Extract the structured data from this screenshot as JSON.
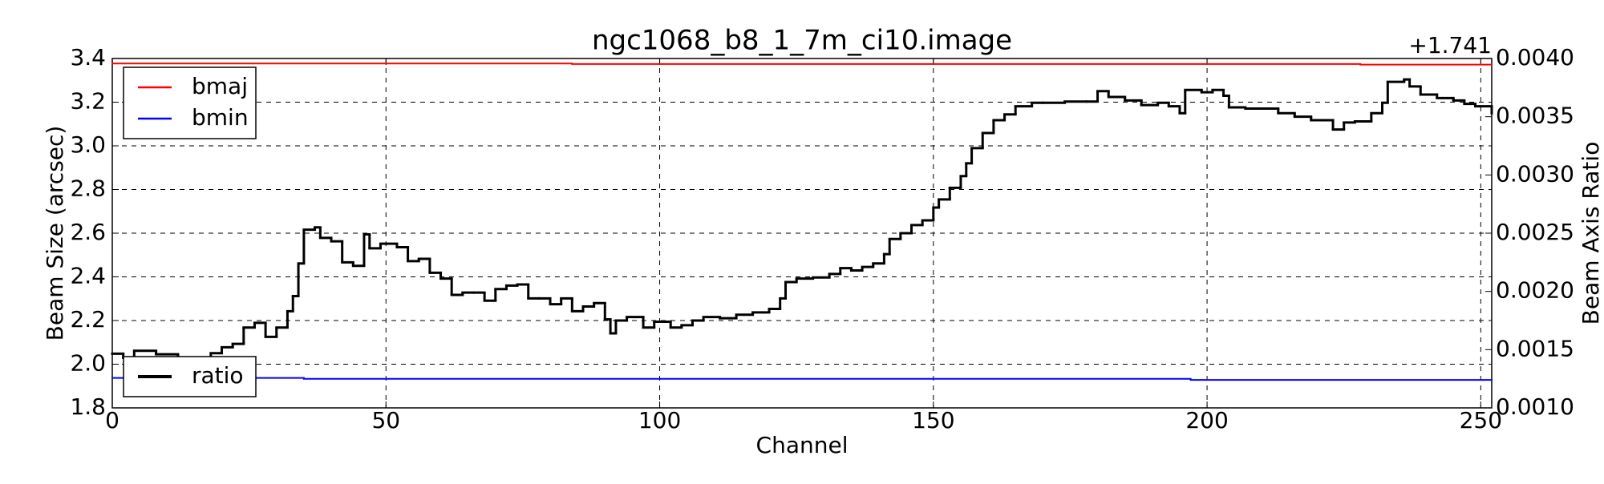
{
  "chart_data": {
    "type": "step",
    "title": "ngc1068_b8_1_7m_ci10.image",
    "xlabel": "Channel",
    "ylabel": "Beam Size (arcsec)",
    "y2label": "Beam Axis Ratio",
    "y2offset": "+1.741",
    "xlim": [
      0,
      252
    ],
    "xticks": [
      0,
      50,
      100,
      150,
      200,
      250
    ],
    "ylim": [
      1.8,
      3.4
    ],
    "yticks": [
      1.8,
      {
        "value": 2,
        "label": "2.0"
      },
      2.2,
      2.4,
      2.6,
      2.8,
      {
        "value": 3,
        "label": "3.0"
      },
      3.2,
      3.4
    ],
    "y2lim": [
      0.001,
      0.004
    ],
    "y2ticks": [
      {
        "value": 0.001,
        "label": "0.0010"
      },
      {
        "value": 0.0015,
        "label": "0.0015"
      },
      {
        "value": 0.002,
        "label": "0.0020"
      },
      {
        "value": 0.0025,
        "label": "0.0025"
      },
      {
        "value": 0.003,
        "label": "0.0030"
      },
      {
        "value": 0.0035,
        "label": "0.0035"
      },
      {
        "value": 0.004,
        "label": "0.0040"
      }
    ],
    "grid": true,
    "legend": "upper left",
    "legend2": "lower left",
    "series": [
      {
        "name": "bmaj",
        "color": "#ff0000",
        "x": [
          0,
          84,
          228
        ],
        "values": [
          3.377,
          3.375,
          3.372
        ]
      },
      {
        "name": "bmin",
        "color": "#0000ff",
        "x": [
          0,
          35,
          197
        ],
        "values": [
          1.937,
          1.933,
          1.928
        ]
      },
      {
        "name": "ratio",
        "color": "#000000",
        "axis": "y2",
        "x": [
          0,
          2,
          4,
          8,
          12,
          14,
          16,
          18,
          20,
          22,
          24,
          26,
          28,
          30,
          32,
          33,
          34,
          35,
          37,
          38,
          40,
          42,
          44,
          46,
          47,
          49,
          52,
          54,
          56,
          58,
          60,
          62,
          64,
          66,
          68,
          70,
          72,
          74,
          76,
          78,
          80,
          82,
          84,
          86,
          88,
          90,
          91,
          92,
          94,
          97,
          99,
          102,
          104,
          106,
          108,
          111,
          114,
          117,
          120,
          122,
          123,
          125,
          128,
          131,
          133,
          135,
          137,
          139,
          141,
          142,
          144,
          146,
          148,
          150,
          151,
          153,
          155,
          156,
          157,
          159,
          161,
          163,
          165,
          168,
          170,
          174,
          178,
          180,
          182,
          185,
          188,
          191,
          193,
          195,
          196,
          199,
          201,
          203,
          204,
          207,
          210,
          213,
          216,
          219,
          222,
          223,
          225,
          227,
          230,
          232,
          233,
          236,
          237,
          239,
          242,
          245,
          247,
          249,
          252
        ],
        "values": [
          0.001465,
          0.00143,
          0.00149,
          0.00146,
          0.00141,
          0.00136,
          0.00141,
          0.00147,
          0.00152,
          0.00155,
          0.00169,
          0.00173,
          0.00161,
          0.00169,
          0.00183,
          0.00196,
          0.00224,
          0.00253,
          0.00255,
          0.00246,
          0.00243,
          0.00225,
          0.00222,
          0.00249,
          0.00237,
          0.00241,
          0.00238,
          0.00226,
          0.00228,
          0.00216,
          0.00211,
          0.00197,
          0.00199,
          0.00199,
          0.00192,
          0.00202,
          0.00205,
          0.00206,
          0.00194,
          0.00194,
          0.00189,
          0.00194,
          0.00183,
          0.00187,
          0.0019,
          0.00176,
          0.00164,
          0.00175,
          0.00178,
          0.00169,
          0.00174,
          0.00169,
          0.00171,
          0.00175,
          0.00178,
          0.00177,
          0.0018,
          0.00182,
          0.00185,
          0.00194,
          0.00208,
          0.00211,
          0.00212,
          0.00215,
          0.0022,
          0.00218,
          0.00221,
          0.00224,
          0.00232,
          0.00245,
          0.0025,
          0.00257,
          0.00261,
          0.00272,
          0.00279,
          0.00289,
          0.00299,
          0.0031,
          0.00323,
          0.00336,
          0.00347,
          0.00352,
          0.00359,
          0.00362,
          0.00362,
          0.00363,
          0.00363,
          0.00372,
          0.00367,
          0.00364,
          0.0036,
          0.00362,
          0.00359,
          0.00353,
          0.00373,
          0.00371,
          0.00373,
          0.00368,
          0.00358,
          0.00357,
          0.00357,
          0.00353,
          0.0035,
          0.00347,
          0.00347,
          0.00339,
          0.00345,
          0.00346,
          0.00353,
          0.00362,
          0.0038,
          0.00382,
          0.00376,
          0.00369,
          0.00366,
          0.00364,
          0.00361,
          0.00359,
          0.00353
        ]
      }
    ]
  }
}
